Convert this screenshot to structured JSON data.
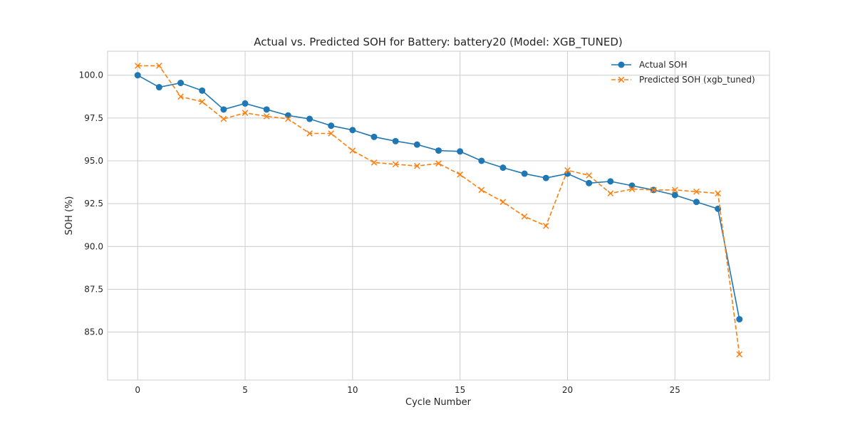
{
  "chart_data": {
    "type": "line",
    "title": "Actual vs. Predicted SOH for Battery: battery20 (Model: XGB_TUNED)",
    "xlabel": "Cycle Number",
    "ylabel": "SOH (%)",
    "xlim": [
      -1.4,
      29.4
    ],
    "ylim": [
      82.2,
      101.4
    ],
    "xticks": [
      0,
      5,
      10,
      15,
      20,
      25
    ],
    "yticks": [
      85.0,
      87.5,
      90.0,
      92.5,
      95.0,
      97.5,
      100.0
    ],
    "xtick_labels": [
      "0",
      "5",
      "10",
      "15",
      "20",
      "25"
    ],
    "ytick_labels": [
      "85.0",
      "87.5",
      "90.0",
      "92.5",
      "95.0",
      "97.5",
      "100.0"
    ],
    "grid": true,
    "legend_position": "top-right",
    "x": [
      0,
      1,
      2,
      3,
      4,
      5,
      6,
      7,
      8,
      9,
      10,
      11,
      12,
      13,
      14,
      15,
      16,
      17,
      18,
      19,
      20,
      21,
      22,
      23,
      24,
      25,
      26,
      27,
      28
    ],
    "series": [
      {
        "name": "Actual SOH",
        "color": "#1f77b4",
        "marker": "circle",
        "line_style": "solid",
        "values": [
          100.0,
          99.3,
          99.55,
          99.1,
          98.0,
          98.35,
          98.0,
          97.65,
          97.45,
          97.05,
          96.8,
          96.4,
          96.15,
          95.95,
          95.6,
          95.55,
          95.0,
          94.6,
          94.25,
          94.0,
          94.25,
          93.7,
          93.8,
          93.55,
          93.3,
          93.0,
          92.6,
          92.2,
          85.75
        ]
      },
      {
        "name": "Predicted SOH (xgb_tuned)",
        "color": "#ff7f0e",
        "marker": "x",
        "line_style": "dashed",
        "values": [
          100.55,
          100.55,
          98.75,
          98.45,
          97.45,
          97.8,
          97.6,
          97.45,
          96.6,
          96.6,
          95.6,
          94.9,
          94.8,
          94.7,
          94.85,
          94.2,
          93.3,
          92.6,
          91.75,
          91.2,
          94.45,
          94.15,
          93.1,
          93.35,
          93.3,
          93.3,
          93.2,
          93.1,
          83.7
        ]
      }
    ]
  }
}
